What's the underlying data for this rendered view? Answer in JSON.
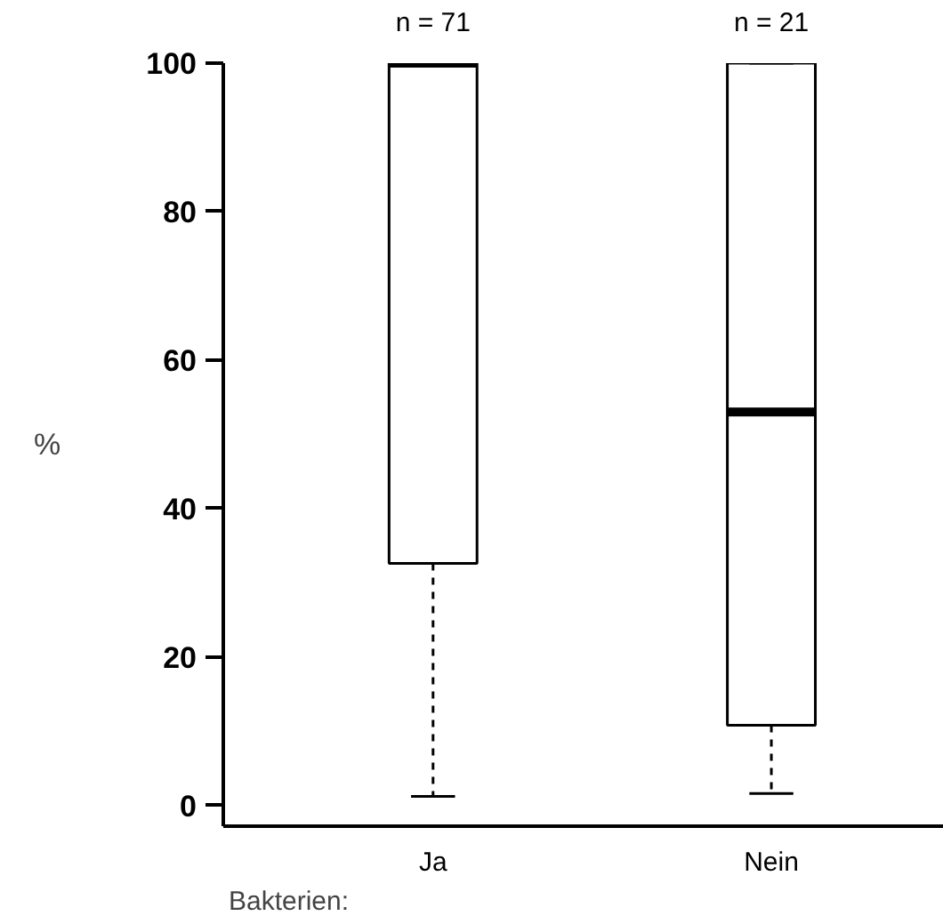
{
  "chart_data": {
    "type": "box",
    "xlabel": "Bakterien:",
    "ylabel": "%",
    "categories": [
      "Ja",
      "Nein"
    ],
    "boxes": [
      {
        "low": 1.2,
        "q1": 32.6,
        "median": 100,
        "q3": 100,
        "high": 100
      },
      {
        "low": 1.6,
        "q1": 10.8,
        "median": 53,
        "q3": 100,
        "high": 100
      }
    ],
    "annotations": [
      "n = 71",
      "n = 21"
    ],
    "ylim": [
      -2.8,
      100
    ],
    "yticks": [
      0,
      20,
      40,
      60,
      80,
      100
    ],
    "grid": false
  }
}
